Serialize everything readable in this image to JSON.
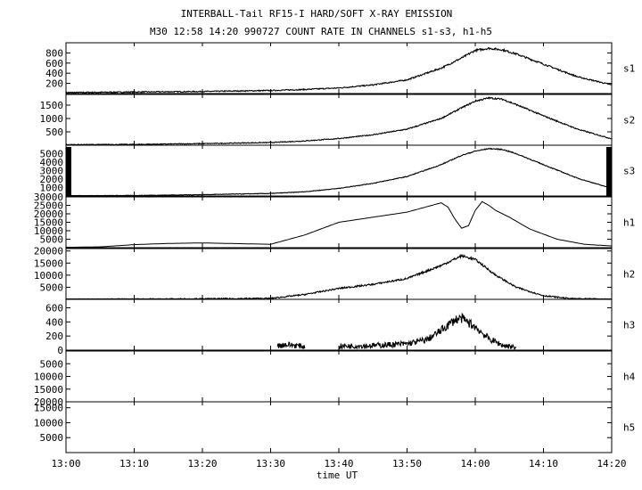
{
  "title": "INTERBALL-Tail RF15-I HARD/SOFT X-RAY EMISSION",
  "subtitle": "M30  12:58 14:20 990727  COUNT RATE IN CHANNELS s1-s3, h1-h5",
  "chart_data": {
    "type": "line",
    "xlabel": "time UT",
    "x_ticks": [
      "13:00",
      "13:10",
      "13:20",
      "13:30",
      "13:40",
      "13:50",
      "14:00",
      "14:10",
      "14:20"
    ],
    "xlim": [
      "13:00",
      "14:20"
    ],
    "grid": false,
    "series": [
      {
        "name": "s1",
        "ylim": [
          0,
          1000
        ],
        "y_ticks": [
          800,
          600,
          400,
          200
        ],
        "x": [
          "13:00",
          "13:10",
          "13:20",
          "13:30",
          "13:35",
          "13:40",
          "13:45",
          "13:50",
          "13:55",
          "13:58",
          "14:00",
          "14:02",
          "14:04",
          "14:06",
          "14:10",
          "14:15",
          "14:20"
        ],
        "values": [
          20,
          30,
          40,
          60,
          80,
          110,
          170,
          270,
          500,
          700,
          850,
          890,
          860,
          780,
          580,
          330,
          170
        ],
        "noise": 20
      },
      {
        "name": "s2",
        "ylim": [
          0,
          1900
        ],
        "y_ticks": [
          1500,
          1000,
          500
        ],
        "x": [
          "13:00",
          "13:10",
          "13:20",
          "13:30",
          "13:35",
          "13:40",
          "13:45",
          "13:50",
          "13:55",
          "13:58",
          "14:00",
          "14:02",
          "14:04",
          "14:06",
          "14:10",
          "14:15",
          "14:20"
        ],
        "values": [
          20,
          30,
          60,
          100,
          160,
          250,
          390,
          600,
          1000,
          1400,
          1650,
          1770,
          1720,
          1520,
          1100,
          600,
          240
        ],
        "noise": 30
      },
      {
        "name": "s3",
        "ylim": [
          0,
          6000
        ],
        "y_ticks": [
          5000,
          4000,
          3000,
          2000,
          1000
        ],
        "x": [
          "13:00",
          "13:10",
          "13:20",
          "13:30",
          "13:35",
          "13:40",
          "13:45",
          "13:50",
          "13:55",
          "13:58",
          "14:00",
          "14:02",
          "14:04",
          "14:06",
          "14:10",
          "14:15",
          "14:20"
        ],
        "values": [
          30,
          60,
          160,
          300,
          500,
          900,
          1500,
          2300,
          3700,
          4800,
          5300,
          5600,
          5500,
          5000,
          3700,
          2100,
          900
        ],
        "noise": 60,
        "edge_blocks": true
      },
      {
        "name": "h1",
        "ylim": [
          0,
          30000
        ],
        "y_ticks": [
          30000,
          25000,
          20000,
          15000,
          10000,
          5000
        ],
        "x": [
          "13:00",
          "13:05",
          "13:10",
          "13:15",
          "13:20",
          "13:25",
          "13:30",
          "13:35",
          "13:40",
          "13:45",
          "13:50",
          "13:55",
          "13:56",
          "13:57",
          "13:58",
          "13:59",
          "14:00",
          "14:01",
          "14:02",
          "14:03",
          "14:05",
          "14:08",
          "14:12",
          "14:16",
          "14:20"
        ],
        "values": [
          200,
          500,
          1800,
          2500,
          2800,
          2400,
          2000,
          7500,
          15000,
          18000,
          21000,
          26500,
          24000,
          17000,
          11500,
          13000,
          22000,
          27200,
          25000,
          22000,
          18000,
          11000,
          5000,
          2000,
          1000
        ],
        "noise": 0
      },
      {
        "name": "h2",
        "ylim": [
          0,
          21000
        ],
        "y_ticks": [
          20000,
          15000,
          10000,
          5000
        ],
        "x": [
          "13:00",
          "13:10",
          "13:20",
          "13:30",
          "13:35",
          "13:40",
          "13:45",
          "13:50",
          "13:55",
          "13:58",
          "14:00",
          "14:03",
          "14:06",
          "14:10",
          "14:14",
          "14:20"
        ],
        "values": [
          0,
          100,
          200,
          400,
          2000,
          4500,
          6200,
          8600,
          14000,
          18000,
          16500,
          10000,
          5000,
          1500,
          300,
          0
        ],
        "noise": 500
      },
      {
        "name": "h3",
        "ylim": [
          0,
          720
        ],
        "y_ticks": [
          600,
          400,
          200,
          0
        ],
        "segments": [
          {
            "x": [
              "13:31",
              "13:32",
              "13:34",
              "13:35"
            ],
            "values": [
              60,
              80,
              65,
              45
            ],
            "noise": 45
          },
          {
            "x": [
              "13:40",
              "13:45",
              "13:50",
              "13:53",
              "13:55",
              "13:57",
              "13:58",
              "14:00",
              "14:02",
              "14:04",
              "14:06"
            ],
            "values": [
              55,
              65,
              90,
              150,
              280,
              430,
              450,
              330,
              160,
              70,
              40
            ],
            "noise": 70
          }
        ]
      },
      {
        "name": "h4",
        "ylim": [
          20000,
          0
        ],
        "y_ticks": [
          5000,
          10000,
          15000,
          20000
        ],
        "values": []
      },
      {
        "name": "h5",
        "ylim": [
          0,
          17000
        ],
        "y_ticks": [
          5000,
          10000,
          15000
        ],
        "values": []
      }
    ]
  }
}
